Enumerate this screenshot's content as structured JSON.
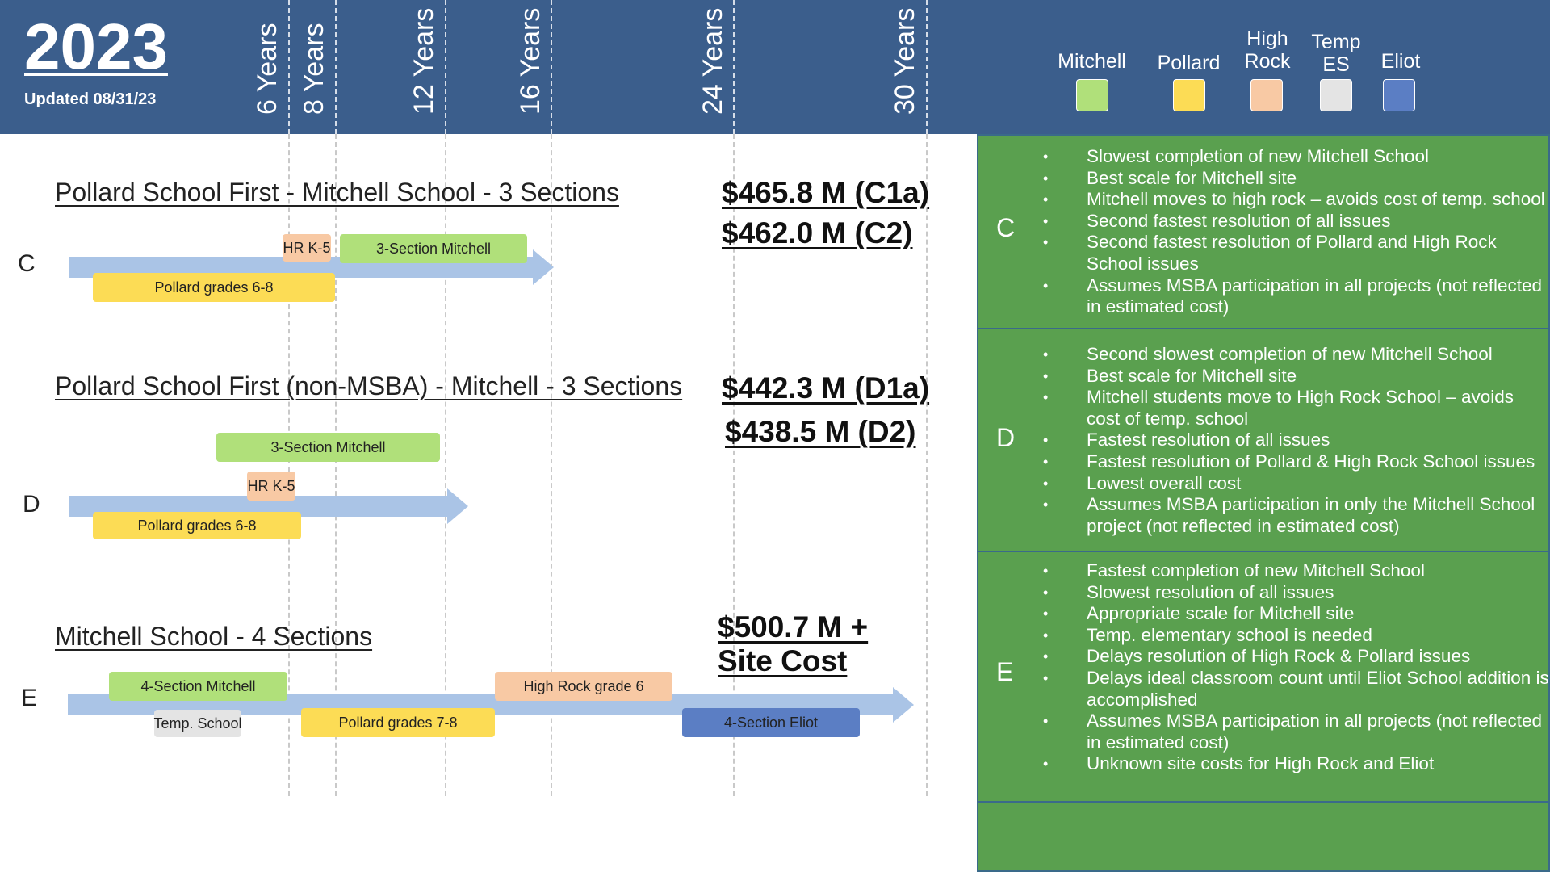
{
  "header": {
    "year": "2023",
    "updated": "Updated 08/31/23",
    "years": [
      "6 Years",
      "8 Years",
      "12 Years",
      "16 Years",
      "24 Years",
      "30 Years"
    ]
  },
  "legend": [
    {
      "label": "Mitchell",
      "color": "#b0e07a"
    },
    {
      "label": "Pollard",
      "color": "#fcdc55"
    },
    {
      "label": "High Rock",
      "color": "#f8c9a4"
    },
    {
      "label": "Temp ES",
      "color": "#e4e4e4"
    },
    {
      "label": "Eliot",
      "color": "#5b7ec4"
    }
  ],
  "options": [
    {
      "letter": "C",
      "title": "Pollard School First - Mitchell School - 3 Sections",
      "costs": [
        "$465.8 M (C1a)",
        "$462.0 M (C2)"
      ],
      "bars": [
        "HR K-5",
        "3-Section Mitchell",
        "Pollard grades 6-8"
      ]
    },
    {
      "letter": "D",
      "title": "Pollard School First (non-MSBA) - Mitchell  - 3 Sections",
      "costs": [
        "$442.3 M (D1a)",
        "$438.5 M (D2)"
      ],
      "bars": [
        "3-Section Mitchell",
        "HR K-5",
        "Pollard grades 6-8"
      ]
    },
    {
      "letter": "E",
      "title": "Mitchell School - 4 Sections",
      "costs": [
        "$500.7 M +",
        "Site Cost"
      ],
      "bars": [
        "4-Section Mitchell",
        "High Rock grade 6",
        "Temp. School",
        "Pollard grades 7-8",
        "4-Section Eliot"
      ]
    }
  ],
  "panels": [
    {
      "letter": "C",
      "bullets": [
        "Slowest completion of new Mitchell School",
        "Best scale for Mitchell site",
        "Mitchell moves to high rock – avoids cost of temp. school",
        "Second fastest resolution of all issues",
        "Second fastest resolution of Pollard and High Rock School issues",
        "Assumes MSBA participation in all projects (not reflected in estimated cost)"
      ]
    },
    {
      "letter": "D",
      "bullets": [
        "Second slowest completion of new Mitchell School",
        "Best scale for Mitchell site",
        "Mitchell students move to High Rock School  – avoids cost of temp. school",
        "Fastest resolution of all issues",
        "Fastest resolution of Pollard & High Rock School issues",
        "Lowest overall cost",
        "Assumes MSBA participation in only the Mitchell School project (not reflected in estimated cost)"
      ]
    },
    {
      "letter": "E",
      "bullets": [
        "Fastest completion of new Mitchell School",
        "Slowest resolution of all issues",
        "Appropriate scale for Mitchell site",
        "Temp. elementary school is needed",
        "Delays resolution of High Rock & Pollard issues",
        "Delays ideal classroom count until Eliot  School addition is accomplished",
        "Assumes MSBA participation in all projects (not reflected in estimated cost)",
        "Unknown site costs for High Rock and Eliot"
      ]
    }
  ]
}
